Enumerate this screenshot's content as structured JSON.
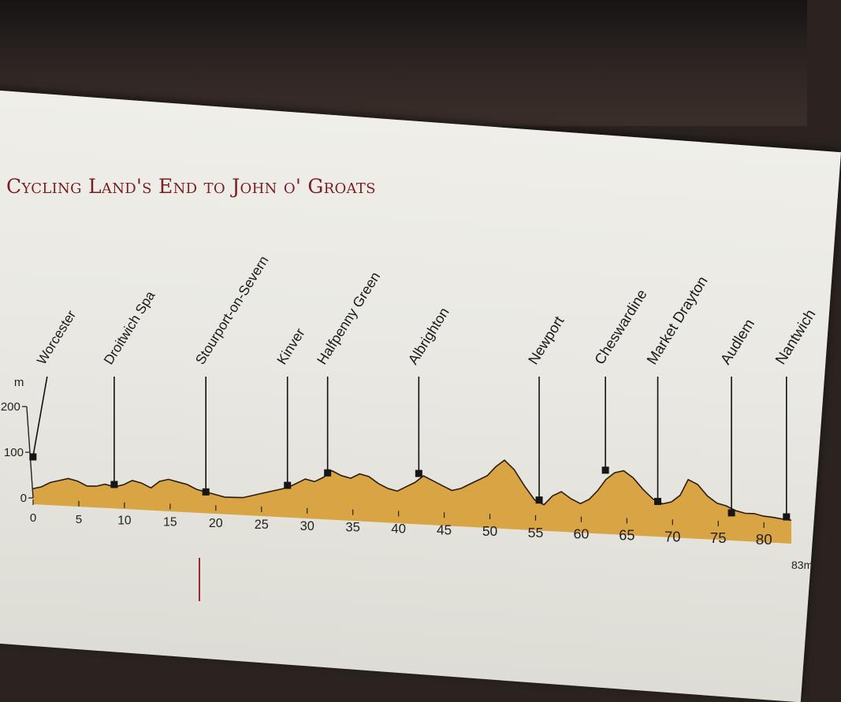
{
  "page": {
    "title": "Cycling Land's End to John o' Groats"
  },
  "chart_data": {
    "type": "area",
    "title": "Cycling Land's End to John o' Groats",
    "xlabel": "",
    "ylabel": "m",
    "xlim": [
      0,
      83
    ],
    "ylim": [
      0,
      200
    ],
    "x_ticks": [
      0,
      5,
      10,
      15,
      20,
      25,
      30,
      35,
      40,
      45,
      50,
      55,
      60,
      65,
      70,
      75,
      80
    ],
    "x_tick_labels": [
      "0",
      "5",
      "10",
      "15",
      "20",
      "25",
      "30",
      "35",
      "40",
      "45",
      "50",
      "55",
      "60",
      "65",
      "70",
      "75",
      "80"
    ],
    "x_end_label": "83m",
    "y_ticks": [
      0,
      100,
      200
    ],
    "y_tick_labels": [
      "0",
      "100",
      "200"
    ],
    "grid": false,
    "colors": {
      "fill": "#d9a444",
      "stroke": "#2a1d10",
      "marker": "#1a1a1a",
      "title": "#7a1d22"
    },
    "profile": {
      "x": [
        0,
        1,
        2,
        3,
        4,
        5,
        6,
        7,
        8,
        9,
        10,
        11,
        12,
        13,
        14,
        15,
        16,
        17,
        18,
        19,
        20,
        21,
        22,
        23,
        24,
        25,
        26,
        27,
        28,
        29,
        30,
        31,
        32,
        33,
        34,
        35,
        36,
        37,
        38,
        39,
        40,
        41,
        42,
        43,
        44,
        45,
        46,
        47,
        48,
        49,
        50,
        51,
        52,
        53,
        54,
        55,
        56,
        57,
        58,
        59,
        60,
        61,
        62,
        63,
        64,
        65,
        66,
        67,
        68,
        69,
        70,
        71,
        72,
        73,
        74,
        75,
        76,
        77,
        78,
        79,
        80,
        81,
        82,
        83
      ],
      "y": [
        20,
        25,
        35,
        40,
        45,
        40,
        30,
        30,
        35,
        30,
        35,
        45,
        40,
        30,
        45,
        50,
        45,
        40,
        30,
        25,
        20,
        15,
        15,
        15,
        20,
        25,
        30,
        35,
        40,
        50,
        60,
        55,
        65,
        80,
        70,
        65,
        75,
        70,
        55,
        45,
        40,
        50,
        60,
        75,
        65,
        55,
        45,
        50,
        60,
        70,
        80,
        100,
        115,
        95,
        60,
        30,
        20,
        40,
        50,
        35,
        25,
        35,
        55,
        80,
        95,
        100,
        85,
        60,
        40,
        30,
        35,
        50,
        85,
        75,
        50,
        35,
        30,
        20,
        15,
        15,
        10,
        8,
        5,
        3
      ]
    },
    "places": [
      {
        "name": "Worcester",
        "km": 0.3,
        "elev": 90
      },
      {
        "name": "Droitwich Spa",
        "km": 9,
        "elev": 35
      },
      {
        "name": "Stourport-on-Severn",
        "km": 19,
        "elev": 25
      },
      {
        "name": "Kinver",
        "km": 28,
        "elev": 45
      },
      {
        "name": "Halfpenny Green",
        "km": 32.5,
        "elev": 75
      },
      {
        "name": "Albrighton",
        "km": 42.5,
        "elev": 80
      },
      {
        "name": "Newport",
        "km": 55.5,
        "elev": 30
      },
      {
        "name": "Cheswardine",
        "km": 63,
        "elev": 100
      },
      {
        "name": "Market Drayton",
        "km": 68.5,
        "elev": 35
      },
      {
        "name": "Audlem",
        "km": 76.5,
        "elev": 15
      },
      {
        "name": "Nantwich",
        "km": 82.5,
        "elev": 10
      }
    ]
  }
}
